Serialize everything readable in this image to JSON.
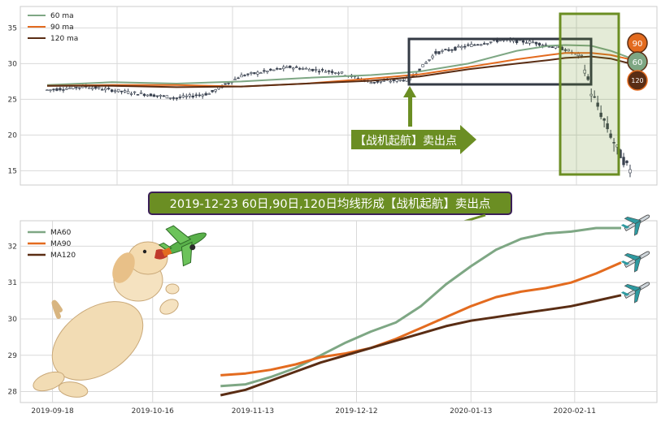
{
  "colors": {
    "ma60": "#7ea784",
    "ma90": "#e36b1f",
    "ma120": "#5a2d14",
    "candle": "#3a4250",
    "olive": "#6b8e23",
    "box_dark": "#333a44",
    "banner_border": "#3b1f57"
  },
  "annotations": {
    "sell_label": "【战机起航】卖出点",
    "banner": "2019-12-23 60日,90日,120日均线形成【战机起航】卖出点",
    "badge_90": "90",
    "badge_60": "60",
    "badge_120": "120"
  },
  "icons": [
    "airplane-icon",
    "dog-illustration",
    "toy-plane-icon"
  ],
  "chart_data": [
    {
      "type": "line",
      "subtype": "candlestick-with-moving-averages",
      "ylim": [
        13,
        38
      ],
      "yticks": [
        15,
        20,
        25,
        30,
        35
      ],
      "grid": true,
      "legend": "top-left",
      "legend_entries": [
        "60 ma",
        "90 ma",
        "120 ma"
      ],
      "x_index_range": [
        0,
        180
      ],
      "price_trend": {
        "x": [
          0,
          12,
          25,
          40,
          50,
          60,
          75,
          90,
          100,
          112,
          120,
          130,
          140,
          150,
          160,
          165,
          168,
          172,
          176,
          180
        ],
        "y": [
          26.3,
          26.8,
          26.0,
          25.2,
          25.8,
          28.3,
          29.5,
          28.8,
          27.4,
          27.8,
          31.5,
          32.5,
          33.3,
          33.0,
          32.0,
          31.0,
          26.0,
          22.0,
          18.0,
          15.0
        ]
      },
      "series": [
        {
          "name": "60 ma",
          "x": [
            0,
            20,
            40,
            60,
            80,
            100,
            115,
            130,
            145,
            155,
            160,
            168,
            174,
            180
          ],
          "values": [
            27.0,
            27.4,
            27.2,
            27.5,
            28.0,
            28.4,
            28.9,
            30.0,
            31.8,
            32.5,
            32.6,
            32.5,
            31.8,
            30.8
          ]
        },
        {
          "name": "90 ma",
          "x": [
            0,
            20,
            40,
            60,
            80,
            100,
            115,
            130,
            145,
            155,
            160,
            168,
            174,
            180
          ],
          "values": [
            26.9,
            27.0,
            27.0,
            26.8,
            27.2,
            27.9,
            28.5,
            29.5,
            30.6,
            31.2,
            31.5,
            31.5,
            31.2,
            30.6
          ]
        },
        {
          "name": "120 ma",
          "x": [
            0,
            20,
            40,
            60,
            80,
            100,
            115,
            130,
            145,
            155,
            160,
            168,
            174,
            180
          ],
          "values": [
            26.9,
            26.9,
            26.7,
            26.8,
            27.2,
            27.6,
            28.2,
            29.2,
            30.0,
            30.5,
            30.8,
            31.0,
            30.7,
            30.0
          ]
        }
      ]
    },
    {
      "type": "line",
      "ylim": [
        27.7,
        32.7
      ],
      "yticks": [
        28,
        29,
        30,
        31,
        32
      ],
      "grid": true,
      "legend": "top-left",
      "x_ticks": [
        "2019-09-18",
        "2019-10-16",
        "2019-11-13",
        "2019-12-12",
        "2020-01-13",
        "2020-02-11"
      ],
      "x_range": [
        "2019-09-09",
        "2020-03-05"
      ],
      "series": [
        {
          "name": "MA60",
          "x": [
            "2019-11-04",
            "2019-11-11",
            "2019-11-18",
            "2019-11-25",
            "2019-12-02",
            "2019-12-09",
            "2019-12-16",
            "2019-12-23",
            "2019-12-30",
            "2020-01-06",
            "2020-01-13",
            "2020-01-20",
            "2020-01-27",
            "2020-02-03",
            "2020-02-10",
            "2020-02-17",
            "2020-02-24"
          ],
          "values": [
            28.15,
            28.2,
            28.4,
            28.65,
            29.0,
            29.35,
            29.65,
            29.9,
            30.35,
            30.95,
            31.45,
            31.9,
            32.2,
            32.35,
            32.4,
            32.5,
            32.5
          ]
        },
        {
          "name": "MA90",
          "x": [
            "2019-11-04",
            "2019-11-11",
            "2019-11-18",
            "2019-11-25",
            "2019-12-02",
            "2019-12-09",
            "2019-12-16",
            "2019-12-23",
            "2019-12-30",
            "2020-01-06",
            "2020-01-13",
            "2020-01-20",
            "2020-01-27",
            "2020-02-03",
            "2020-02-10",
            "2020-02-17",
            "2020-02-24"
          ],
          "values": [
            28.45,
            28.5,
            28.6,
            28.75,
            28.95,
            29.05,
            29.2,
            29.45,
            29.75,
            30.05,
            30.35,
            30.6,
            30.75,
            30.85,
            31.0,
            31.25,
            31.55
          ]
        },
        {
          "name": "MA120",
          "x": [
            "2019-11-04",
            "2019-11-11",
            "2019-11-18",
            "2019-11-25",
            "2019-12-02",
            "2019-12-09",
            "2019-12-16",
            "2019-12-23",
            "2019-12-30",
            "2020-01-06",
            "2020-01-13",
            "2020-01-20",
            "2020-01-27",
            "2020-02-03",
            "2020-02-10",
            "2020-02-17",
            "2020-02-24"
          ],
          "values": [
            27.9,
            28.05,
            28.3,
            28.55,
            28.8,
            29.0,
            29.2,
            29.4,
            29.6,
            29.8,
            29.95,
            30.05,
            30.15,
            30.25,
            30.35,
            30.5,
            30.65
          ]
        }
      ]
    }
  ]
}
